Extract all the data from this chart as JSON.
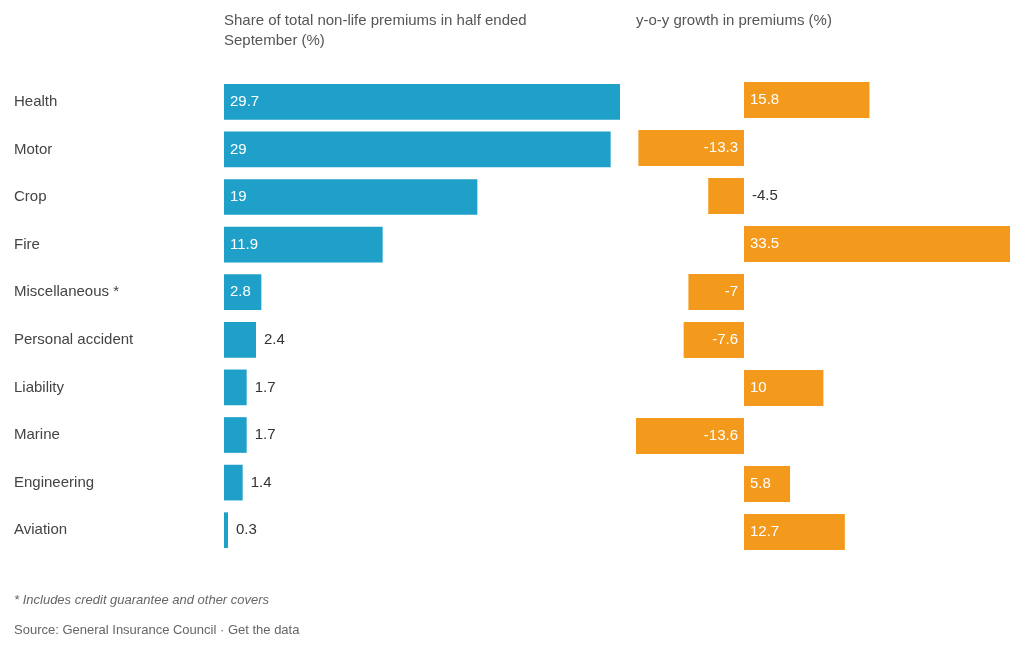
{
  "chart_data": [
    {
      "type": "bar",
      "orientation": "horizontal",
      "title": "Share of total non-life premiums in half ended September (%)",
      "categories": [
        "Health",
        "Motor",
        "Crop",
        "Fire",
        "Miscellaneous *",
        "Personal accident",
        "Liability",
        "Marine",
        "Engineering",
        "Aviation"
      ],
      "values": [
        29.7,
        29,
        19,
        11.9,
        2.8,
        2.4,
        1.7,
        1.7,
        1.4,
        0.3
      ],
      "color": "#1fa0c9",
      "xlim": [
        0,
        29.7
      ],
      "data_labels": true,
      "tick_labels": "y",
      "grid": false,
      "legend": false,
      "annotations": [
        "* Includes credit guarantee and other covers",
        "Source: General Insurance Council · Get the data"
      ]
    },
    {
      "type": "bar",
      "orientation": "horizontal",
      "title": "y-o-y growth in premiums (%)",
      "categories": [
        null,
        null,
        null,
        null,
        null,
        null,
        null,
        null,
        null,
        null
      ],
      "values": [
        15.8,
        -13.3,
        -4.5,
        33.5,
        -7,
        -7.6,
        10,
        -13.6,
        5.8,
        12.7
      ],
      "color": "#f39a1c",
      "xlim": [
        -13.6,
        33.5
      ],
      "data_labels": true,
      "tick_labels": false,
      "grid": false,
      "legend": false
    }
  ]
}
